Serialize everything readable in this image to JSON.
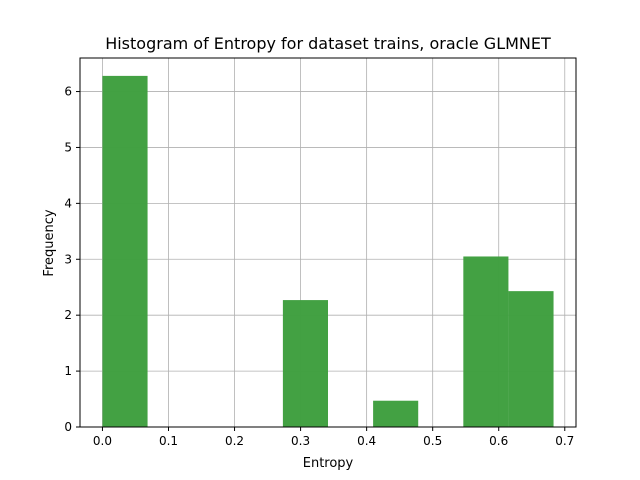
{
  "chart_data": {
    "type": "bar",
    "title": "Histogram of Entropy for dataset trains, oracle GLMNET",
    "xlabel": "Entropy",
    "ylabel": "Frequency",
    "bin_edges": [
      0.0,
      0.0683,
      0.1366,
      0.2049,
      0.2732,
      0.3415,
      0.4098,
      0.4781,
      0.5464,
      0.6147,
      0.683
    ],
    "values": [
      6.28,
      0,
      0,
      0,
      2.27,
      0,
      0.47,
      0,
      3.05,
      2.43
    ],
    "xlim": [
      -0.034,
      0.717
    ],
    "ylim": [
      0,
      6.6
    ],
    "xticks": [
      0.0,
      0.1,
      0.2,
      0.3,
      0.4,
      0.5,
      0.6,
      0.7
    ],
    "xtick_labels": [
      "0.0",
      "0.1",
      "0.2",
      "0.3",
      "0.4",
      "0.5",
      "0.6",
      "0.7"
    ],
    "yticks": [
      0,
      1,
      2,
      3,
      4,
      5,
      6
    ],
    "ytick_labels": [
      "0",
      "1",
      "2",
      "3",
      "4",
      "5",
      "6"
    ],
    "grid": true,
    "bar_color": "#3f9f3f"
  }
}
